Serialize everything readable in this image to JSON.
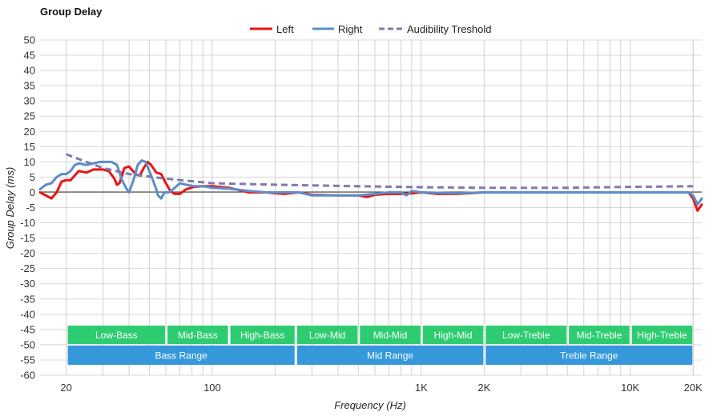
{
  "chart_data": {
    "type": "line",
    "title": "Group Delay",
    "xlabel": "Frequency (Hz)",
    "ylabel": "Group Delay (ms)",
    "x_scale": "log",
    "xlim": [
      15,
      22000
    ],
    "ylim": [
      -60,
      50
    ],
    "y_ticks": [
      50,
      45,
      40,
      35,
      30,
      25,
      20,
      15,
      10,
      5,
      0,
      -5,
      -10,
      -15,
      -20,
      -25,
      -30,
      -35,
      -40,
      -45,
      -50,
      -55,
      -60
    ],
    "x_tick_labels": [
      {
        "value": 20,
        "label": "20"
      },
      {
        "value": 100,
        "label": "100"
      },
      {
        "value": 1000,
        "label": "1K"
      },
      {
        "value": 2000,
        "label": "2K"
      },
      {
        "value": 10000,
        "label": "10K"
      },
      {
        "value": 20000,
        "label": "20K"
      }
    ],
    "grid": true,
    "legend_position": "top-center",
    "series": [
      {
        "name": "Left",
        "color": "#ee1111",
        "style": "solid",
        "points": [
          [
            15,
            0
          ],
          [
            16,
            -1
          ],
          [
            17,
            -2
          ],
          [
            18,
            0
          ],
          [
            19,
            3.5
          ],
          [
            20,
            4
          ],
          [
            21,
            4
          ],
          [
            23,
            7
          ],
          [
            25,
            6.5
          ],
          [
            27,
            7.5
          ],
          [
            30,
            7.5
          ],
          [
            32,
            7
          ],
          [
            34,
            4.5
          ],
          [
            35,
            2.5
          ],
          [
            36,
            3
          ],
          [
            38,
            8
          ],
          [
            40,
            8.5
          ],
          [
            43,
            6
          ],
          [
            45,
            5.5
          ],
          [
            47,
            8
          ],
          [
            49,
            10
          ],
          [
            51,
            9
          ],
          [
            54,
            6.5
          ],
          [
            57,
            6
          ],
          [
            60,
            3
          ],
          [
            63,
            0.5
          ],
          [
            66,
            -0.5
          ],
          [
            70,
            -0.5
          ],
          [
            75,
            1
          ],
          [
            82,
            1.8
          ],
          [
            90,
            2
          ],
          [
            100,
            2
          ],
          [
            120,
            1.5
          ],
          [
            150,
            0
          ],
          [
            180,
            0
          ],
          [
            220,
            -0.5
          ],
          [
            260,
            0
          ],
          [
            300,
            -0.8
          ],
          [
            400,
            -1
          ],
          [
            500,
            -1
          ],
          [
            550,
            -1.5
          ],
          [
            600,
            -0.8
          ],
          [
            700,
            -0.5
          ],
          [
            800,
            -0.5
          ],
          [
            900,
            -0.3
          ],
          [
            1000,
            0
          ],
          [
            1200,
            -0.5
          ],
          [
            1500,
            -0.5
          ],
          [
            2000,
            0
          ],
          [
            3000,
            0
          ],
          [
            5000,
            0
          ],
          [
            7000,
            0
          ],
          [
            10000,
            0
          ],
          [
            15000,
            0
          ],
          [
            19000,
            0
          ],
          [
            20000,
            -2
          ],
          [
            21000,
            -6
          ],
          [
            22000,
            -4
          ]
        ]
      },
      {
        "name": "Right",
        "color": "#5b8ec9",
        "style": "solid",
        "points": [
          [
            15,
            1
          ],
          [
            16,
            2.5
          ],
          [
            17,
            3
          ],
          [
            18,
            5
          ],
          [
            19,
            6
          ],
          [
            20,
            6
          ],
          [
            21,
            7
          ],
          [
            22,
            9
          ],
          [
            23,
            9.5
          ],
          [
            25,
            9
          ],
          [
            27,
            9.5
          ],
          [
            29,
            10
          ],
          [
            31,
            10
          ],
          [
            33,
            10
          ],
          [
            35,
            9
          ],
          [
            37,
            4
          ],
          [
            39,
            1
          ],
          [
            40,
            0
          ],
          [
            42,
            4
          ],
          [
            44,
            9
          ],
          [
            46,
            10.5
          ],
          [
            48,
            10
          ],
          [
            50,
            7
          ],
          [
            52,
            4
          ],
          [
            54,
            1
          ],
          [
            55,
            -1
          ],
          [
            57,
            -2
          ],
          [
            59,
            0
          ],
          [
            62,
            0
          ],
          [
            65,
            1
          ],
          [
            70,
            3
          ],
          [
            75,
            2.5
          ],
          [
            82,
            2
          ],
          [
            90,
            2
          ],
          [
            100,
            1.5
          ],
          [
            120,
            1.2
          ],
          [
            150,
            0.5
          ],
          [
            180,
            0
          ],
          [
            220,
            0
          ],
          [
            260,
            0
          ],
          [
            300,
            -1
          ],
          [
            400,
            -1
          ],
          [
            500,
            -1
          ],
          [
            600,
            -0.5
          ],
          [
            700,
            0
          ],
          [
            800,
            0
          ],
          [
            850,
            -1
          ],
          [
            900,
            0.5
          ],
          [
            1000,
            0
          ],
          [
            1500,
            -0.3
          ],
          [
            2000,
            0
          ],
          [
            3000,
            0
          ],
          [
            5000,
            0
          ],
          [
            7000,
            0
          ],
          [
            10000,
            0
          ],
          [
            15000,
            0
          ],
          [
            19000,
            0
          ],
          [
            20000,
            -1
          ],
          [
            21000,
            -4
          ],
          [
            22000,
            -2
          ]
        ]
      },
      {
        "name": "Audibility Treshold",
        "color": "#7e7bae",
        "style": "dashed",
        "points": [
          [
            20,
            12.5
          ],
          [
            25,
            10
          ],
          [
            30,
            8
          ],
          [
            40,
            6
          ],
          [
            60,
            4.5
          ],
          [
            100,
            3
          ],
          [
            200,
            2.5
          ],
          [
            500,
            2
          ],
          [
            1000,
            1.7
          ],
          [
            2000,
            1.5
          ],
          [
            5000,
            1.5
          ],
          [
            10000,
            1.8
          ],
          [
            20000,
            2
          ]
        ]
      }
    ],
    "range_bars": {
      "row1": [
        {
          "label": "Low-Bass",
          "from": 20,
          "to": 60,
          "color": "#2ecc71"
        },
        {
          "label": "Mid-Bass",
          "from": 60,
          "to": 120,
          "color": "#2ecc71"
        },
        {
          "label": "High-Bass",
          "from": 120,
          "to": 250,
          "color": "#2ecc71"
        },
        {
          "label": "Low-Mid",
          "from": 250,
          "to": 500,
          "color": "#2ecc71"
        },
        {
          "label": "Mid-Mid",
          "from": 500,
          "to": 1000,
          "color": "#2ecc71"
        },
        {
          "label": "High-Mid",
          "from": 1000,
          "to": 2000,
          "color": "#2ecc71"
        },
        {
          "label": "Low-Treble",
          "from": 2000,
          "to": 5000,
          "color": "#2ecc71"
        },
        {
          "label": "Mid-Treble",
          "from": 5000,
          "to": 10000,
          "color": "#2ecc71"
        },
        {
          "label": "High-Treble",
          "from": 10000,
          "to": 20000,
          "color": "#2ecc71"
        }
      ],
      "row2": [
        {
          "label": "Bass Range",
          "from": 20,
          "to": 250,
          "color": "#3498db"
        },
        {
          "label": "Mid Range",
          "from": 250,
          "to": 2000,
          "color": "#3498db"
        },
        {
          "label": "Treble Range",
          "from": 2000,
          "to": 20000,
          "color": "#3498db"
        }
      ]
    }
  }
}
